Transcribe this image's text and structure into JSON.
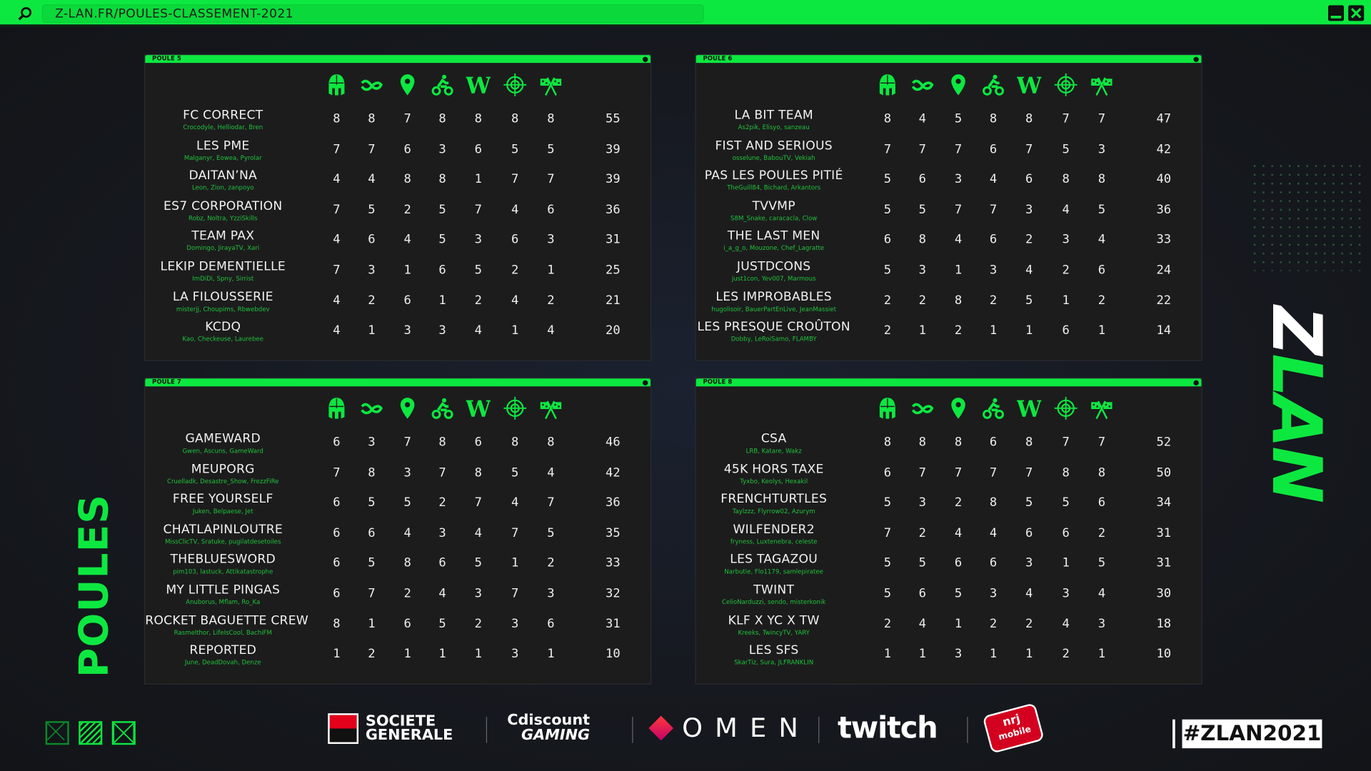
{
  "browser": {
    "url": "Z-LAN.FR/POULES-CLASSEMENT-2021",
    "icons": [
      "search-icon",
      "minimize-icon",
      "close-icon"
    ]
  },
  "colors": {
    "accent": "#0de840",
    "players": "#1fc43a",
    "panel": "#1c1c1d"
  },
  "categories": [
    "viking-helmet-icon",
    "infinity-snake-icon",
    "map-pin-icon",
    "motorbike-icon",
    "w-letter-icon",
    "crosshair-icon",
    "checkered-flags-icon"
  ],
  "poules": [
    {
      "title": "POULE 5",
      "teams": [
        {
          "name": "FC CORRECT",
          "players": "Crocodyle, Helliodar, Bren",
          "scores": [
            8,
            8,
            7,
            8,
            8,
            8,
            8
          ],
          "total": "55"
        },
        {
          "name": "LES PME",
          "players": "Malganyr, Eowea, Pyrolar",
          "scores": [
            7,
            7,
            6,
            3,
            6,
            5,
            5
          ],
          "total": "39"
        },
        {
          "name": "DAITAN’NA",
          "players": "Leon, Zion, zanpoyo",
          "scores": [
            4,
            4,
            8,
            8,
            1,
            7,
            7
          ],
          "total": "39"
        },
        {
          "name": "ES7 CORPORATION",
          "players": "Robz, Noltra, YzziSkills",
          "scores": [
            7,
            5,
            2,
            5,
            7,
            4,
            6
          ],
          "total": "36"
        },
        {
          "name": "TEAM PAX",
          "players": "Domingo, JirayaTV, Xari",
          "scores": [
            4,
            6,
            4,
            5,
            3,
            6,
            3
          ],
          "total": "31"
        },
        {
          "name": "LEKIP DEMENTIELLE",
          "players": "ImDiDi, Spny, Sirrist",
          "scores": [
            7,
            3,
            1,
            6,
            5,
            2,
            1
          ],
          "total": "25"
        },
        {
          "name": "LA FILOUSSERIE",
          "players": "misterjj, Choupims, Rbwebdev",
          "scores": [
            4,
            2,
            6,
            1,
            2,
            4,
            2
          ],
          "total": "21"
        },
        {
          "name": "KCDQ",
          "players": "Kao, Checkeuse, Laurebee",
          "scores": [
            4,
            1,
            3,
            3,
            4,
            1,
            4
          ],
          "total": "20"
        }
      ]
    },
    {
      "title": "POULE 6",
      "teams": [
        {
          "name": "LA BIT TEAM",
          "players": "As2pik, Elisyo, sanzeau",
          "scores": [
            8,
            4,
            5,
            8,
            8,
            7,
            7
          ],
          "total": "47"
        },
        {
          "name": "FIST AND SERIOUS",
          "players": "osselune, BabouTV, Vekiah",
          "scores": [
            7,
            7,
            7,
            6,
            7,
            5,
            3
          ],
          "total": "42"
        },
        {
          "name": "PAS LES POULES PITIÉ",
          "players": "TheGuill84, Bichard, Arkantors",
          "scores": [
            5,
            6,
            3,
            4,
            6,
            8,
            8
          ],
          "total": "40"
        },
        {
          "name": "TVVMP",
          "players": "S8M_Snake, caracacla, Clow",
          "scores": [
            5,
            5,
            7,
            7,
            3,
            4,
            5
          ],
          "total": "36"
        },
        {
          "name": "THE LAST MEN",
          "players": "i_a_g_o, Mouzone, Chef_Lagratte",
          "scores": [
            6,
            8,
            4,
            6,
            2,
            3,
            4
          ],
          "total": "33"
        },
        {
          "name": "JUSTDCONS",
          "players": "just1con, Yev007, Marmous",
          "scores": [
            5,
            3,
            1,
            3,
            4,
            2,
            6
          ],
          "total": "24"
        },
        {
          "name": "LES IMPROBABLES",
          "players": "hugolisoir, BauerPartEnLive, JeanMassiet",
          "scores": [
            2,
            2,
            8,
            2,
            5,
            1,
            2
          ],
          "total": "22"
        },
        {
          "name": "LES PRESQUE CROÛTON",
          "players": "Dobby, LeRoiSamo, FLAMBY",
          "scores": [
            2,
            1,
            2,
            1,
            1,
            6,
            1
          ],
          "total": "14"
        }
      ]
    },
    {
      "title": "POULE 7",
      "teams": [
        {
          "name": "GAMEWARD",
          "players": "Gwen, Ascuns, GameWard",
          "scores": [
            6,
            3,
            7,
            8,
            6,
            8,
            8
          ],
          "total": "46"
        },
        {
          "name": "MEUPORG",
          "players": "Cruelladk, Desastre_Show, FrezzFiRe",
          "scores": [
            7,
            8,
            3,
            7,
            8,
            5,
            4
          ],
          "total": "42"
        },
        {
          "name": "FREE YOURSELF",
          "players": "Juken, Belpaese, Jet",
          "scores": [
            6,
            5,
            5,
            2,
            7,
            4,
            7
          ],
          "total": "36"
        },
        {
          "name": "CHATLAPINLOUTRE",
          "players": "MissClicTV, Sratuke, pugilatdesetoiles",
          "scores": [
            6,
            6,
            4,
            3,
            4,
            7,
            5
          ],
          "total": "35"
        },
        {
          "name": "THEBLUESWORD",
          "players": "pim103, lastuck, Attikatastrophe",
          "scores": [
            6,
            5,
            8,
            6,
            5,
            1,
            2
          ],
          "total": "33"
        },
        {
          "name": "MY LITTLE PINGAS",
          "players": "Anuborus, Mflam, Ro_Ka",
          "scores": [
            6,
            7,
            2,
            4,
            3,
            7,
            3
          ],
          "total": "32"
        },
        {
          "name": "ROCKET BAGUETTE CREW",
          "players": "Rasmelthor, LifeIsCool, BachiFM",
          "scores": [
            8,
            1,
            6,
            5,
            2,
            3,
            6
          ],
          "total": "31"
        },
        {
          "name": "REPORTED",
          "players": "June, DeadDovah, Denze",
          "scores": [
            1,
            2,
            1,
            1,
            1,
            3,
            1
          ],
          "total": "10"
        }
      ]
    },
    {
      "title": "POULE 8",
      "teams": [
        {
          "name": "CSA",
          "players": "LRB, Katare, Wakz",
          "scores": [
            8,
            8,
            8,
            6,
            8,
            7,
            7
          ],
          "total": "52"
        },
        {
          "name": "45K HORS TAXE",
          "players": "Tyxbo, Keolys, Hexakil",
          "scores": [
            6,
            7,
            7,
            7,
            7,
            8,
            8
          ],
          "total": "50"
        },
        {
          "name": "FRENCHTURTLES",
          "players": "Taylzzz, Flyrrow02, Azurym",
          "scores": [
            5,
            3,
            2,
            8,
            5,
            5,
            6
          ],
          "total": "34"
        },
        {
          "name": "WILFENDER2",
          "players": "fryness, Luxtenebra, celeste",
          "scores": [
            7,
            2,
            4,
            4,
            6,
            6,
            2
          ],
          "total": "31"
        },
        {
          "name": "LES TAGAZOU",
          "players": "Narbutie, Flo1179, samlepiratee",
          "scores": [
            5,
            5,
            6,
            6,
            3,
            1,
            5
          ],
          "total": "31"
        },
        {
          "name": "TWINT",
          "players": "CelioNarduzzi, sendo, misterkonik",
          "scores": [
            5,
            6,
            5,
            3,
            4,
            3,
            4
          ],
          "total": "30"
        },
        {
          "name": "KLF X YC X TW",
          "players": "Kreeks, TwincyTV, YARY",
          "scores": [
            2,
            4,
            1,
            2,
            2,
            4,
            3
          ],
          "total": "18"
        },
        {
          "name": "LES SFS",
          "players": "SkarTiz, Sura, JLFRANKLIN",
          "scores": [
            1,
            1,
            3,
            1,
            1,
            2,
            1
          ],
          "total": "10"
        }
      ]
    }
  ],
  "side": {
    "title": "POULES",
    "logo": "Z LAN"
  },
  "sponsors": [
    {
      "name": "SOCIETE GENERALE",
      "line1": "SOCIETE",
      "line2": "GENERALE"
    },
    {
      "name": "Cdiscount GAMING",
      "line1": "Cdiscount",
      "line2": "GAMING"
    },
    {
      "name": "OMEN",
      "line1": "OMEN"
    },
    {
      "name": "twitch",
      "line1": "twitch"
    },
    {
      "name": "nrj mobile",
      "line1": "nrj",
      "line2": "mobile"
    }
  ],
  "hashtag": "#ZLAN2021"
}
